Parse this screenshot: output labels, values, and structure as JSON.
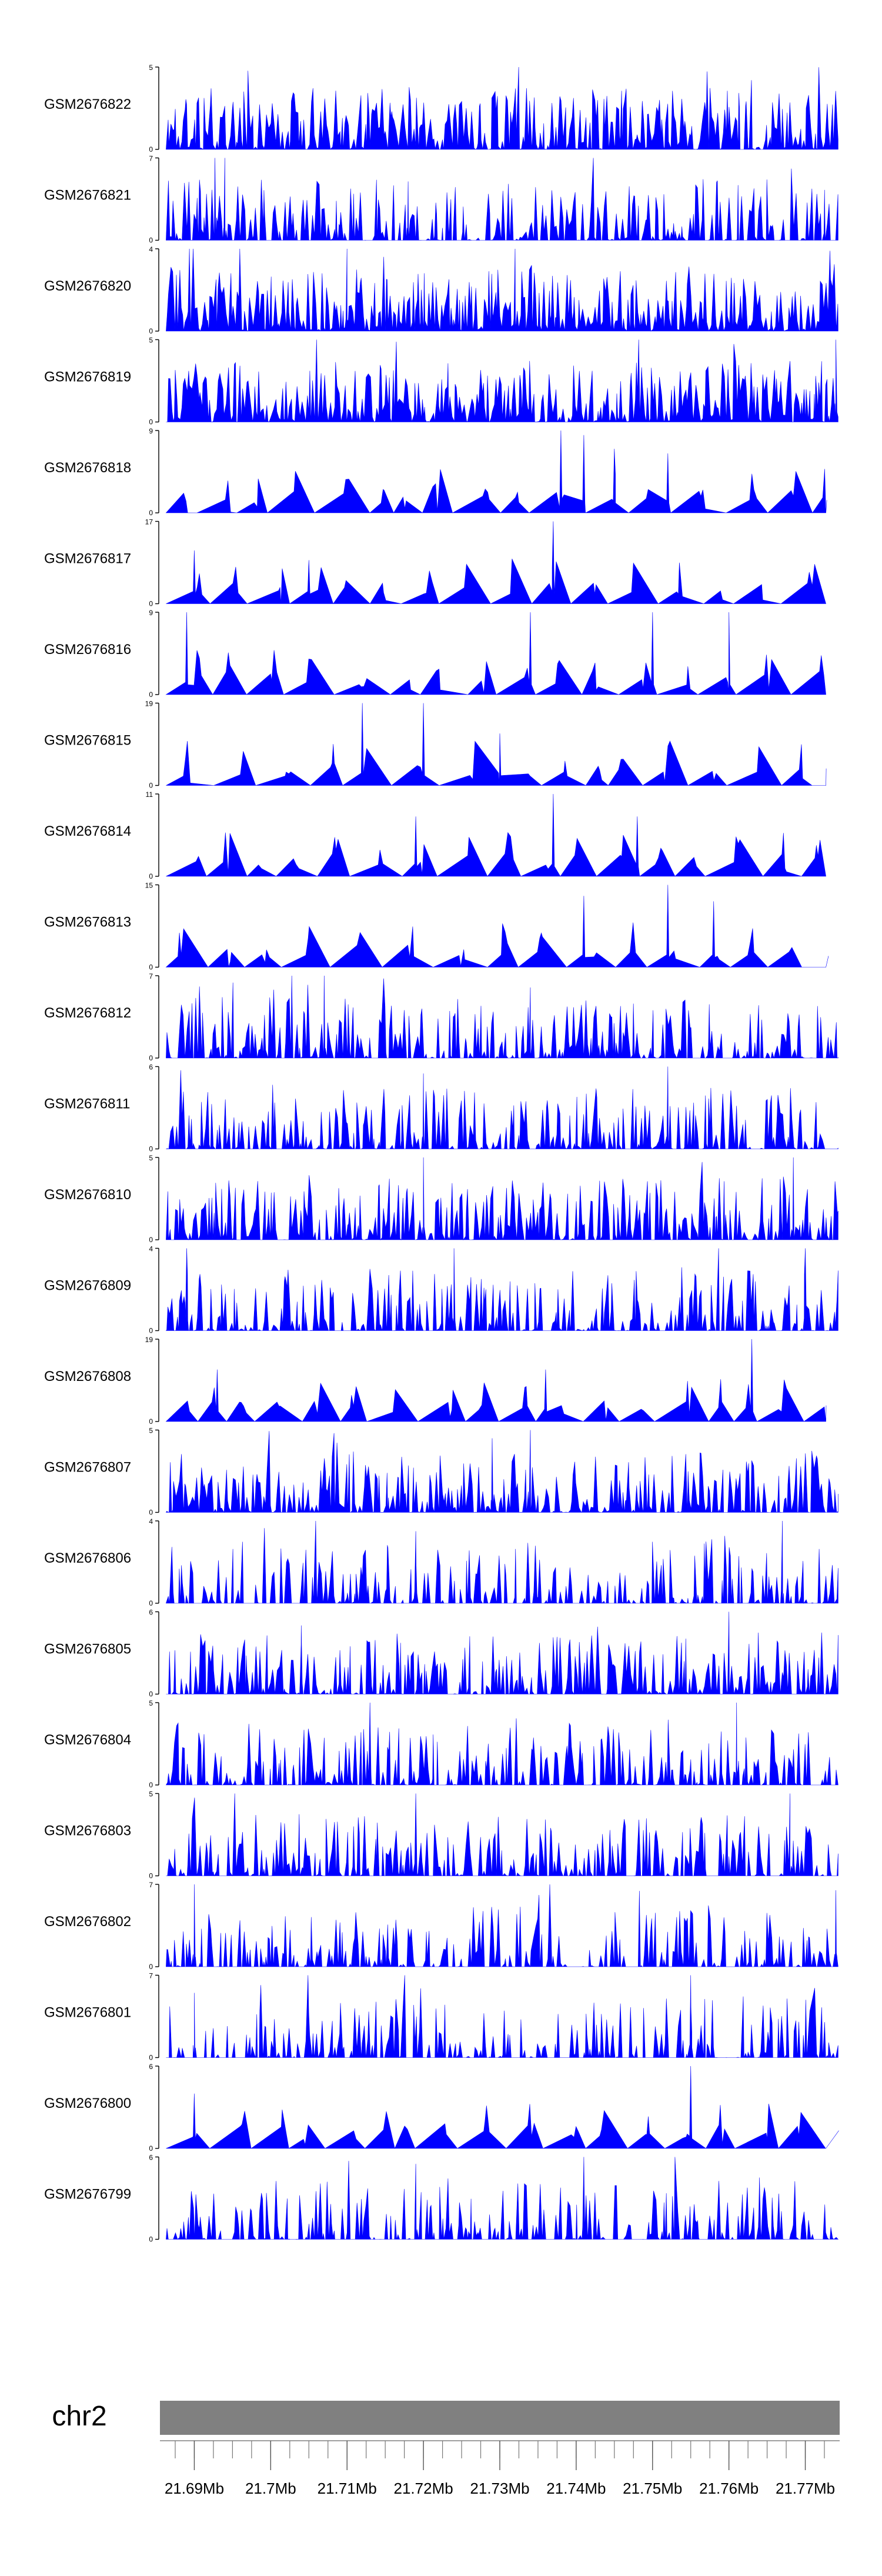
{
  "chart_data": {
    "type": "area",
    "title": "",
    "chromosome": "chr2",
    "xlabel": "",
    "ylabel": "",
    "xlim": [
      21.6855,
      21.7745
    ],
    "x_unit": "Mb",
    "tick_labels": [
      "21.69Mb",
      "21.7Mb",
      "21.71Mb",
      "21.72Mb",
      "21.73Mb",
      "21.74Mb",
      "21.75Mb",
      "21.76Mb",
      "21.77Mb"
    ],
    "tick_values": [
      21.69,
      21.7,
      21.71,
      21.72,
      21.73,
      21.74,
      21.75,
      21.76,
      21.77
    ],
    "minor_tick_step": 0.0025,
    "track_color": "#0000ff",
    "ideogram_color": "#808080",
    "tracks": [
      {
        "name": "GSM2676822",
        "ymax": 5,
        "density": 0.9,
        "sparse": false,
        "peaks": []
      },
      {
        "name": "GSM2676821",
        "ymax": 7,
        "density": 0.65,
        "sparse": false,
        "peaks": [
          [
            21.694,
            7
          ],
          [
            21.718,
            5
          ]
        ]
      },
      {
        "name": "GSM2676820",
        "ymax": 4,
        "density": 1.0,
        "sparse": false,
        "peaks": [
          [
            21.71,
            4
          ],
          [
            21.732,
            4
          ]
        ]
      },
      {
        "name": "GSM2676819",
        "ymax": 5,
        "density": 0.95,
        "sparse": false,
        "peaks": [
          [
            21.774,
            5
          ]
        ]
      },
      {
        "name": "GSM2676818",
        "ymax": 9,
        "density": 0.45,
        "sparse": true,
        "peaks": [
          [
            21.738,
            9
          ],
          [
            21.741,
            8.5
          ],
          [
            21.745,
            7
          ],
          [
            21.752,
            6.5
          ]
        ]
      },
      {
        "name": "GSM2676817",
        "ymax": 17,
        "density": 0.3,
        "sparse": true,
        "peaks": [
          [
            21.737,
            17
          ],
          [
            21.69,
            11
          ],
          [
            21.705,
            9
          ]
        ]
      },
      {
        "name": "GSM2676816",
        "ymax": 9,
        "density": 0.45,
        "sparse": true,
        "peaks": [
          [
            21.689,
            9
          ],
          [
            21.734,
            9
          ],
          [
            21.75,
            9
          ],
          [
            21.76,
            9
          ]
        ]
      },
      {
        "name": "GSM2676815",
        "ymax": 19,
        "density": 0.3,
        "sparse": true,
        "peaks": [
          [
            21.712,
            19
          ],
          [
            21.72,
            19
          ],
          [
            21.73,
            12
          ]
        ]
      },
      {
        "name": "GSM2676814",
        "ymax": 11,
        "density": 0.35,
        "sparse": true,
        "peaks": [
          [
            21.737,
            11
          ],
          [
            21.719,
            8
          ],
          [
            21.748,
            8
          ]
        ]
      },
      {
        "name": "GSM2676813",
        "ymax": 15,
        "density": 0.35,
        "sparse": true,
        "peaks": [
          [
            21.752,
            15
          ],
          [
            21.741,
            13
          ],
          [
            21.758,
            12
          ]
        ]
      },
      {
        "name": "GSM2676812",
        "ymax": 7,
        "density": 0.6,
        "sparse": false,
        "peaks": [
          [
            21.707,
            7
          ],
          [
            21.734,
            6
          ]
        ]
      },
      {
        "name": "GSM2676811",
        "ymax": 6,
        "density": 0.6,
        "sparse": false,
        "peaks": [
          [
            21.752,
            6
          ],
          [
            21.72,
            5.5
          ]
        ]
      },
      {
        "name": "GSM2676810",
        "ymax": 5,
        "density": 0.75,
        "sparse": false,
        "peaks": [
          [
            21.72,
            5
          ]
        ]
      },
      {
        "name": "GSM2676809",
        "ymax": 4,
        "density": 0.6,
        "sparse": false,
        "peaks": [
          [
            21.689,
            4
          ],
          [
            21.724,
            4
          ],
          [
            21.77,
            4
          ]
        ]
      },
      {
        "name": "GSM2676808",
        "ymax": 19,
        "density": 0.3,
        "sparse": true,
        "peaks": [
          [
            21.763,
            19
          ],
          [
            21.736,
            12
          ],
          [
            21.693,
            12
          ]
        ]
      },
      {
        "name": "GSM2676807",
        "ymax": 5,
        "density": 0.75,
        "sparse": false,
        "peaks": [
          [
            21.734,
            5
          ],
          [
            21.729,
            4.5
          ]
        ]
      },
      {
        "name": "GSM2676806",
        "ymax": 4,
        "density": 0.5,
        "sparse": false,
        "peaks": [
          [
            21.767,
            4
          ],
          [
            21.719,
            3.5
          ]
        ]
      },
      {
        "name": "GSM2676805",
        "ymax": 6,
        "density": 0.75,
        "sparse": false,
        "peaks": [
          [
            21.76,
            6
          ],
          [
            21.704,
            5
          ]
        ]
      },
      {
        "name": "GSM2676804",
        "ymax": 5,
        "density": 0.6,
        "sparse": false,
        "peaks": [
          [
            21.713,
            5
          ],
          [
            21.761,
            5
          ]
        ]
      },
      {
        "name": "GSM2676803",
        "ymax": 5,
        "density": 0.6,
        "sparse": false,
        "peaks": [
          [
            21.719,
            5
          ],
          [
            21.768,
            5
          ]
        ]
      },
      {
        "name": "GSM2676802",
        "ymax": 7,
        "density": 0.55,
        "sparse": false,
        "peaks": [
          [
            21.69,
            7
          ],
          [
            21.774,
            6.5
          ]
        ]
      },
      {
        "name": "GSM2676801",
        "ymax": 7,
        "density": 0.5,
        "sparse": false,
        "peaks": [
          [
            21.755,
            7
          ],
          [
            21.69,
            5.5
          ]
        ]
      },
      {
        "name": "GSM2676800",
        "ymax": 6,
        "density": 0.4,
        "sparse": true,
        "peaks": [
          [
            21.755,
            6
          ],
          [
            21.69,
            4
          ]
        ]
      },
      {
        "name": "GSM2676799",
        "ymax": 6,
        "density": 0.5,
        "sparse": false,
        "peaks": [
          [
            21.741,
            6
          ],
          [
            21.719,
            5.5
          ],
          [
            21.764,
            4.5
          ]
        ]
      }
    ]
  }
}
